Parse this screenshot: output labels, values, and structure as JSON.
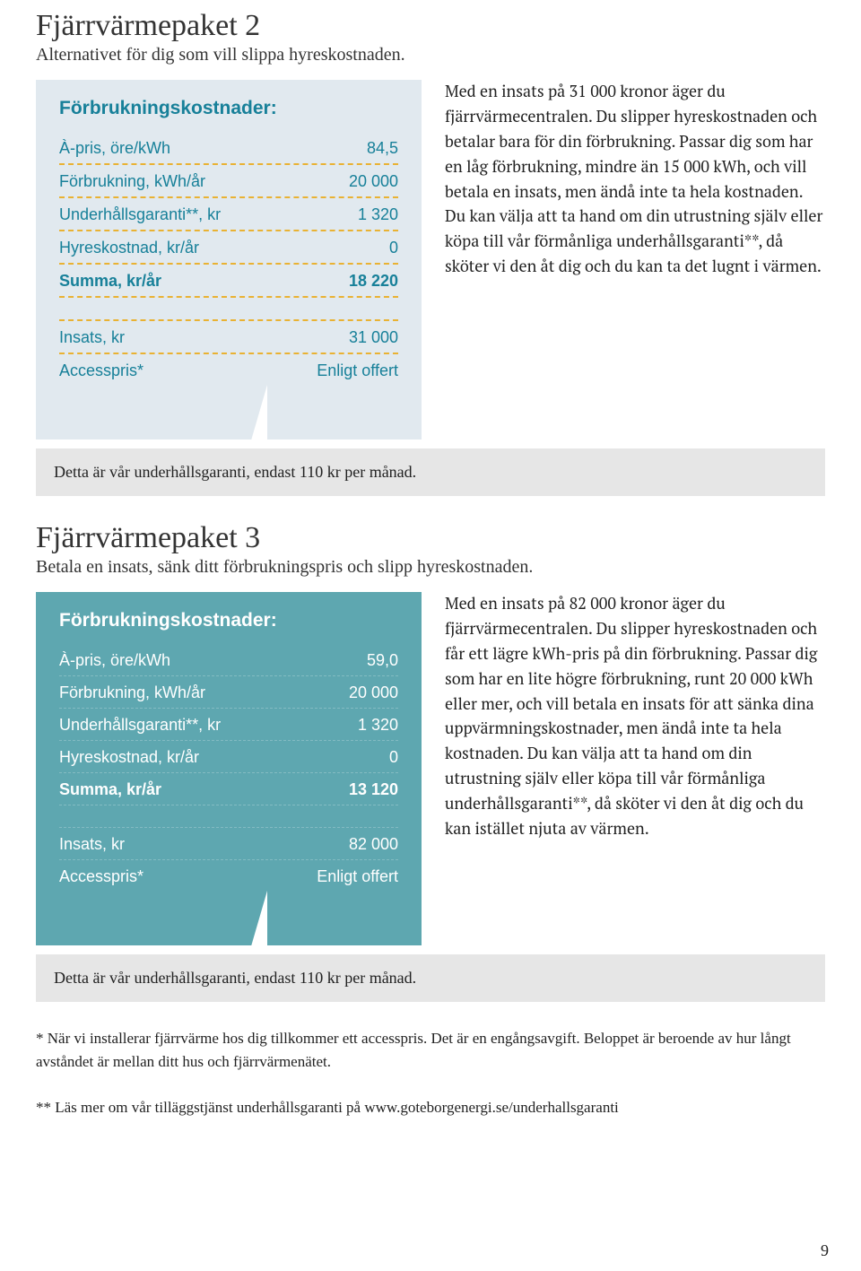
{
  "colors": {
    "box1_bg": "#e1e9ef",
    "box1_text": "#178099",
    "box1_rule": "#e9b233",
    "box2_bg": "#5ea7b0",
    "box2_text": "#ffffff",
    "box2_rule": "#83bbc2",
    "note_bg": "#e6e6e6",
    "page_bg": "#ffffff",
    "body_text": "#222222"
  },
  "package2": {
    "title": "Fjärrvärmepaket 2",
    "subtitle": "Alternativet för dig som vill slippa hyreskostnaden.",
    "table": {
      "heading": "Förbrukningskostnader:",
      "rows": [
        {
          "label": "À-pris, öre/kWh",
          "value": "84,5",
          "bold": false
        },
        {
          "label": "Förbrukning, kWh/år",
          "value": "20 000",
          "bold": false
        },
        {
          "label": "Underhållsgaranti**, kr",
          "value": "1 320",
          "bold": false
        },
        {
          "label": "Hyreskostnad, kr/år",
          "value": "0",
          "bold": false
        },
        {
          "label": "Summa, kr/år",
          "value": "18 220",
          "bold": true
        }
      ],
      "extras": [
        {
          "label": "Insats, kr",
          "value": "31 000"
        },
        {
          "label": "Accesspris*",
          "value": "Enligt offert"
        }
      ]
    },
    "description": "Med en insats på 31 000 kronor äger du fjärrvärmecentralen. Du slipper hyreskostnaden och betalar bara för din förbrukning. Passar dig som har en låg förbrukning, mindre än 15 000 kWh, och vill betala en insats, men ändå inte ta hela kostnaden. Du kan välja att ta hand om din utrustning själv eller köpa till vår förmånliga underhållsgaranti**, då sköter vi den åt dig och du kan ta det lugnt i värmen.",
    "note": "Detta är vår underhållsgaranti, endast 110 kr per månad."
  },
  "package3": {
    "title": "Fjärrvärmepaket 3",
    "subtitle": "Betala en insats, sänk ditt förbrukningspris och slipp hyreskostnaden.",
    "table": {
      "heading": "Förbrukningskostnader:",
      "rows": [
        {
          "label": "À-pris, öre/kWh",
          "value": "59,0",
          "bold": false
        },
        {
          "label": "Förbrukning, kWh/år",
          "value": "20 000",
          "bold": false
        },
        {
          "label": "Underhållsgaranti**, kr",
          "value": "1 320",
          "bold": false
        },
        {
          "label": "Hyreskostnad, kr/år",
          "value": "0",
          "bold": false
        },
        {
          "label": "Summa, kr/år",
          "value": "13 120",
          "bold": true
        }
      ],
      "extras": [
        {
          "label": "Insats, kr",
          "value": "82 000"
        },
        {
          "label": "Accesspris*",
          "value": "Enligt offert"
        }
      ]
    },
    "description": "Med en insats på 82 000 kronor äger du fjärrvärmecentralen. Du slipper hyreskostnaden och får ett lägre kWh-pris på din förbrukning. Passar dig som har en lite högre förbrukning, runt 20 000 kWh eller mer, och vill betala en insats för att sänka dina uppvärmningskostnader, men ändå inte ta hela kostnaden. Du kan välja att ta hand om din utrustning själv eller köpa till vår förmånliga underhållsgaranti**, då sköter vi den åt dig och du kan istället njuta av värmen.",
    "note": "Detta är vår underhållsgaranti, endast 110 kr per månad."
  },
  "footnotes": {
    "f1": "* När vi installerar fjärrvärme hos dig tillkommer ett accesspris. Det är en engångsavgift. Beloppet är beroende av hur långt avståndet är mellan ditt hus och fjärrvärmenätet.",
    "f2": "** Läs mer om vår tilläggstjänst underhållsgaranti på www.goteborgenergi.se/underhallsgaranti"
  },
  "page_number": "9"
}
